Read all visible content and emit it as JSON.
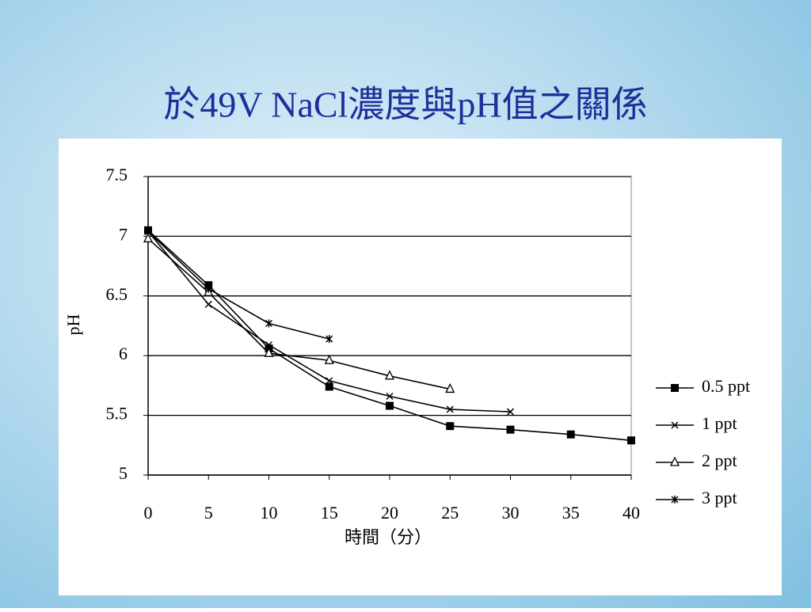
{
  "chart_data": {
    "type": "line",
    "title": "於49V NaCl濃度與pH值之關係",
    "x_label": "時間（分）",
    "y_label": "pH",
    "x": [
      0,
      5,
      10,
      15,
      20,
      25,
      30,
      35,
      40
    ],
    "xlim": [
      0,
      40
    ],
    "xticks": [
      0,
      5,
      10,
      15,
      20,
      25,
      30,
      35,
      40
    ],
    "ylim": [
      5,
      7.5
    ],
    "yticks": [
      5,
      5.5,
      6,
      6.5,
      7,
      7.5
    ],
    "grid": true,
    "legend": "right",
    "series": [
      {
        "name": "0.5 ppt",
        "color": "#000000",
        "marker": "square",
        "values": [
          7.05,
          6.59,
          6.06,
          5.74,
          5.58,
          5.41,
          5.38,
          5.34,
          5.29
        ]
      },
      {
        "name": "1 ppt",
        "color": "#000000",
        "marker": "x",
        "values": [
          7.04,
          6.43,
          6.09,
          5.79,
          5.66,
          5.55,
          5.53,
          null,
          null
        ]
      },
      {
        "name": "2 ppt",
        "color": "#000000",
        "marker": "triangle",
        "values": [
          6.98,
          6.53,
          6.02,
          5.96,
          5.83,
          5.72,
          null,
          null,
          null
        ]
      },
      {
        "name": "3 ppt",
        "color": "#000000",
        "marker": "star",
        "values": [
          7.04,
          6.56,
          6.27,
          6.14,
          null,
          null,
          null,
          null,
          null
        ]
      }
    ]
  }
}
